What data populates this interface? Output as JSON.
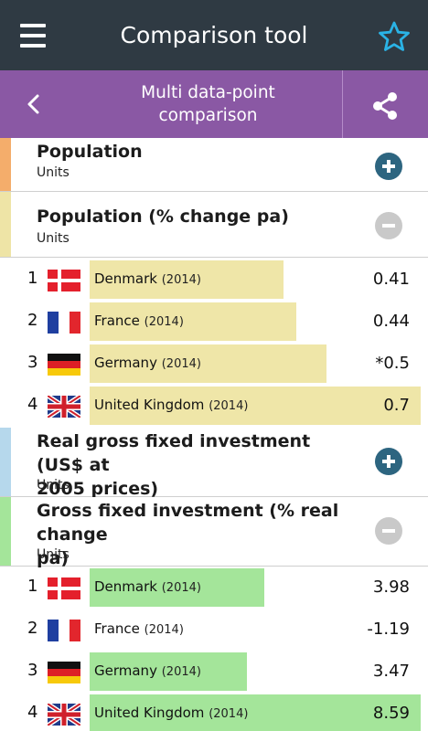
{
  "app": {
    "title": "Comparison tool",
    "subtitle_line1": "Multi data-point",
    "subtitle_line2": "comparison",
    "icons": {
      "menu": "hamburger-menu-icon",
      "favorite": "star-icon",
      "back": "chevron-left-icon",
      "share": "share-icon"
    }
  },
  "colors": {
    "topbar": "#2f3a43",
    "subbar": "#8a58a4",
    "population_accent": "#f4ad6b",
    "population_change_accent": "#eee4a6",
    "investment_accent": "#b6d8ec",
    "investment_change_accent": "#a4e59a",
    "highlight_yellow": "#efe6a8",
    "highlight_green": "#a4e59a",
    "plus_button": "#2d6580",
    "minus_button": "#c9c9c9"
  },
  "indicators": [
    {
      "name": "Population",
      "units": "Units",
      "expanded": false,
      "button": "plus-icon"
    },
    {
      "name": "Population (% change pa)",
      "units": "Units",
      "expanded": true,
      "button": "minus-icon",
      "rows": [
        {
          "rank": "1",
          "country": "Denmark",
          "year": "(2014)",
          "value": "0.41",
          "flag": "denmark-flag",
          "bar_fraction": 0.5
        },
        {
          "rank": "2",
          "country": "France",
          "year": "(2014)",
          "value": "0.44",
          "flag": "france-flag",
          "bar_fraction": 0.53
        },
        {
          "rank": "3",
          "country": "Germany",
          "year": "(2014)",
          "value": "*0.5",
          "flag": "germany-flag",
          "bar_fraction": 0.6
        },
        {
          "rank": "4",
          "country": "United Kingdom",
          "year": "(2014)",
          "value": "0.7",
          "flag": "uk-flag",
          "bar_fraction": 1.0
        }
      ]
    },
    {
      "name_line1": "Real gross fixed investment (US$ at",
      "name_line2": "2005 prices)",
      "units": "Units",
      "expanded": false,
      "button": "plus-icon"
    },
    {
      "name_line1": "Gross fixed investment (% real change",
      "name_line2": "pa)",
      "units": "Units",
      "expanded": true,
      "button": "minus-icon",
      "rows": [
        {
          "rank": "1",
          "country": "Denmark",
          "year": "(2014)",
          "value": "3.98",
          "flag": "denmark-flag",
          "bar_fraction": 0.53
        },
        {
          "rank": "2",
          "country": "France",
          "year": "(2014)",
          "value": "-1.19",
          "flag": "france-flag",
          "bar_fraction": 0
        },
        {
          "rank": "3",
          "country": "Germany",
          "year": "(2014)",
          "value": "3.47",
          "flag": "germany-flag",
          "bar_fraction": 0.47
        },
        {
          "rank": "4",
          "country": "United Kingdom",
          "year": "(2014)",
          "value": "8.59",
          "flag": "uk-flag",
          "bar_fraction": 1.0
        }
      ]
    }
  ]
}
